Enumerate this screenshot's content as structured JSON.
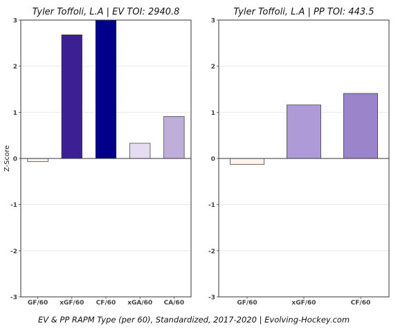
{
  "chart_data": [
    {
      "type": "bar",
      "title": "Tyler Toffoli, L.A  |  EV TOI: 2940.8",
      "categories": [
        "GF/60",
        "xGF/60",
        "CF/60",
        "xGA/60",
        "CA/60"
      ],
      "values": [
        -0.07,
        2.68,
        3.0,
        0.33,
        0.91
      ],
      "colors": [
        "#fcf3ef",
        "#3b1f93",
        "#00008b",
        "#e6dcf2",
        "#bfadda"
      ],
      "ylabel": "Z-Score",
      "ylim": [
        -3,
        3
      ],
      "yticks": [
        -3,
        -2,
        -1,
        0,
        1,
        2,
        3
      ],
      "grid": true
    },
    {
      "type": "bar",
      "title": "Tyler Toffoli, L.A  |  PP TOI: 443.5",
      "categories": [
        "GF/60",
        "xGF/60",
        "CF/60"
      ],
      "values": [
        -0.13,
        1.16,
        1.41
      ],
      "colors": [
        "#fcf3ef",
        "#ae9ad6",
        "#9b84c9"
      ],
      "ylabel": "",
      "ylim": [
        -3,
        3
      ],
      "yticks": [
        -3,
        -2,
        -1,
        0,
        1,
        2,
        3
      ],
      "grid": true
    }
  ],
  "caption": "EV & PP RAPM Type (per 60), Standardized, 2017-2020    |    Evolving-Hockey.com"
}
